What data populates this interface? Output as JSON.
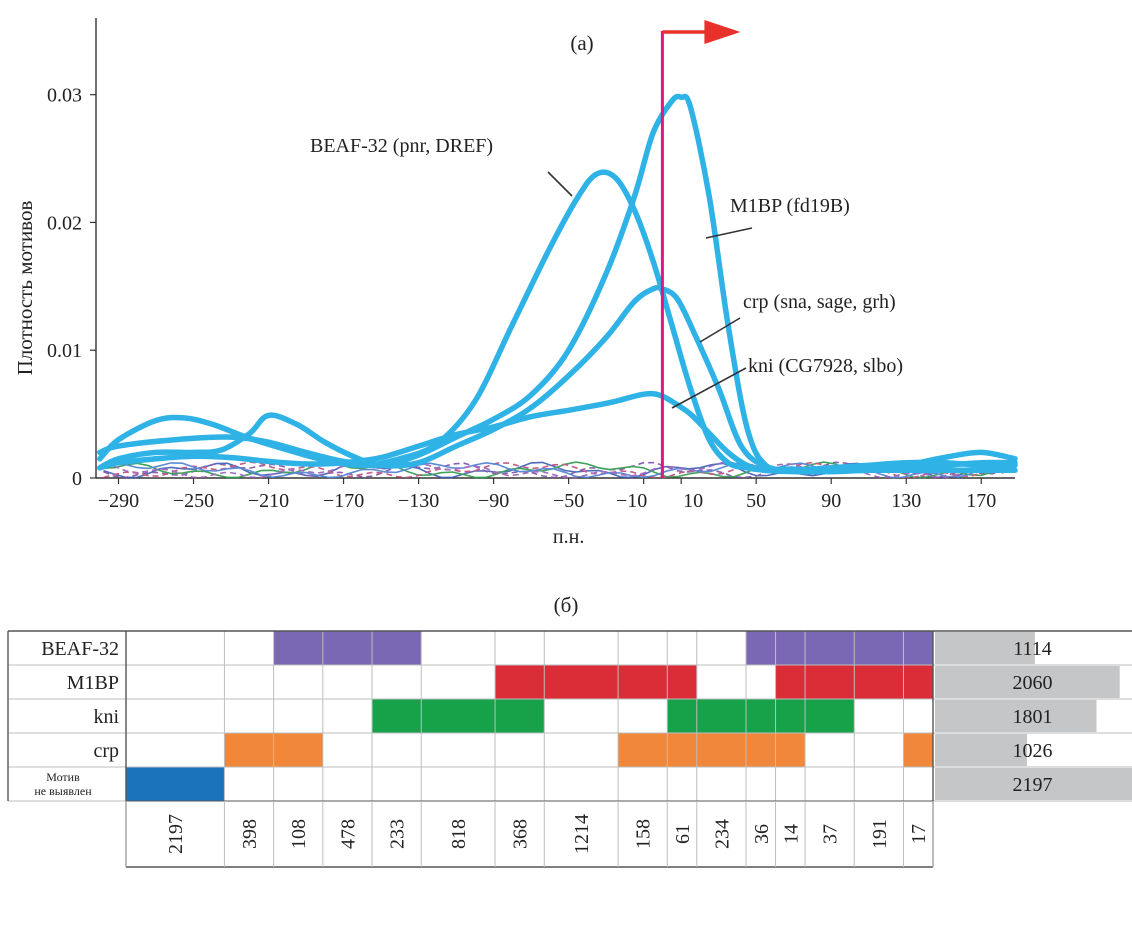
{
  "chart_data": [
    {
      "type": "line",
      "panel_label": "(a)",
      "xlabel": "п.н.",
      "ylabel": "Плотность мотивов",
      "xlim": [
        -302,
        188
      ],
      "ylim": [
        0,
        0.036
      ],
      "x_ticks": [
        -290,
        -250,
        -210,
        -170,
        -130,
        -90,
        -50,
        -10,
        10,
        50,
        90,
        130,
        170
      ],
      "x_tick_labels": [
        "−290",
        "−250",
        "−210",
        "−170",
        "−130",
        "−90",
        "−50",
        "−10",
        "10",
        "50",
        "90",
        "130",
        "170"
      ],
      "y_ticks": [
        0,
        0.01,
        0.02,
        0.03
      ],
      "y_tick_labels": [
        "0",
        "0.01",
        "0.02",
        "0.03"
      ],
      "tss_marker_x": 0,
      "series": [
        {
          "name": "BEAF-32 (pnr, DREF)",
          "color": "#2fb2e6",
          "x": [
            -300,
            -290,
            -270,
            -255,
            -240,
            -220,
            -200,
            -180,
            -160,
            -140,
            -120,
            -100,
            -80,
            -60,
            -45,
            -35,
            -25,
            -15,
            -5,
            5,
            15,
            25,
            35,
            45,
            55,
            70,
            90,
            110,
            130,
            150,
            170,
            188
          ],
          "y": [
            0.0015,
            0.003,
            0.0045,
            0.0047,
            0.0042,
            0.0031,
            0.0022,
            0.0014,
            0.001,
            0.0015,
            0.0027,
            0.006,
            0.012,
            0.018,
            0.022,
            0.0238,
            0.0235,
            0.021,
            0.017,
            0.012,
            0.007,
            0.003,
            0.0012,
            0.0008,
            0.0006,
            0.0005,
            0.0005,
            0.0006,
            0.0006,
            0.0006,
            0.0006,
            0.0006
          ]
        },
        {
          "name": "M1BP (fd19B)",
          "color": "#2fb2e6",
          "x": [
            -300,
            -290,
            -260,
            -230,
            -210,
            -190,
            -170,
            -150,
            -130,
            -110,
            -90,
            -70,
            -50,
            -30,
            -15,
            -5,
            5,
            10,
            15,
            25,
            35,
            45,
            55,
            70,
            90,
            110,
            130,
            150,
            170,
            188
          ],
          "y": [
            0.002,
            0.0025,
            0.003,
            0.0032,
            0.0028,
            0.002,
            0.0013,
            0.001,
            0.0018,
            0.0032,
            0.0046,
            0.0065,
            0.01,
            0.016,
            0.022,
            0.027,
            0.0295,
            0.0298,
            0.029,
            0.022,
            0.012,
            0.004,
            0.001,
            0.0007,
            0.0006,
            0.0007,
            0.001,
            0.0016,
            0.002,
            0.0015
          ]
        },
        {
          "name": "crp (sna, sage, grh)",
          "color": "#2fb2e6",
          "x": [
            -300,
            -290,
            -270,
            -250,
            -235,
            -220,
            -210,
            -195,
            -180,
            -165,
            -150,
            -130,
            -110,
            -90,
            -70,
            -50,
            -30,
            -15,
            -5,
            0,
            8,
            18,
            30,
            42,
            55,
            70,
            90,
            110,
            130,
            150,
            170,
            188
          ],
          "y": [
            0.0008,
            0.0015,
            0.002,
            0.002,
            0.0022,
            0.0035,
            0.0049,
            0.0042,
            0.0028,
            0.0017,
            0.001,
            0.0012,
            0.0025,
            0.0038,
            0.0055,
            0.008,
            0.011,
            0.0138,
            0.0148,
            0.0148,
            0.014,
            0.011,
            0.007,
            0.0025,
            0.0009,
            0.0006,
            0.0006,
            0.0006,
            0.0008,
            0.001,
            0.0012,
            0.0012
          ]
        },
        {
          "name": "kni (CG7928, slbo)",
          "color": "#2fb2e6",
          "x": [
            -300,
            -290,
            -270,
            -250,
            -230,
            -210,
            -190,
            -170,
            -150,
            -130,
            -110,
            -90,
            -70,
            -50,
            -35,
            -25,
            -12,
            -5,
            0,
            5,
            15,
            25,
            35,
            45,
            55,
            70,
            90,
            110,
            130,
            150,
            170,
            188
          ],
          "y": [
            0.0008,
            0.0012,
            0.0015,
            0.0017,
            0.0016,
            0.0013,
            0.0011,
            0.0012,
            0.0016,
            0.0025,
            0.0034,
            0.004,
            0.0048,
            0.0053,
            0.0057,
            0.006,
            0.0065,
            0.0066,
            0.0064,
            0.006,
            0.005,
            0.0035,
            0.002,
            0.001,
            0.0006,
            0.0006,
            0.0008,
            0.001,
            0.0012,
            0.0012,
            0.001,
            0.001
          ]
        }
      ],
      "background_series_colors": [
        "#3b5bb5",
        "#7d4fa8",
        "#2c9a4a",
        "#c04a7a",
        "#4a7fcf",
        "#9a5dbb"
      ],
      "annotations": [
        {
          "text": "BEAF-32 (pnr, DREF)",
          "target": "BEAF-32 (pnr, DREF)"
        },
        {
          "text": "M1BP (fd19B)",
          "target": "M1BP (fd19B)"
        },
        {
          "text": "crp (sna, sage, grh)",
          "target": "crp (sna, sage, grh)"
        },
        {
          "text": "kni (CG7928, slbo)",
          "target": "kni (CG7928, slbo)"
        }
      ],
      "colors": {
        "curve": "#2fb2e6",
        "tss_line": "#e0177f",
        "arrow": "#e8312a"
      }
    },
    {
      "type": "table",
      "panel_label": "(б)",
      "rows": [
        "BEAF-32",
        "M1BP",
        "kni",
        "crp",
        "Мотив\nне выявлен"
      ],
      "column_counts": [
        "2197",
        "398",
        "108",
        "478",
        "233",
        "818",
        "368",
        "1214",
        "158",
        "61",
        "234",
        "36",
        "14",
        "37",
        "191",
        "17"
      ],
      "column_weights": [
        2,
        1,
        1,
        1,
        1,
        1.5,
        1,
        1.5,
        1,
        0.6,
        1,
        0.6,
        0.6,
        1,
        1,
        0.6
      ],
      "row_totals": [
        "1114",
        "2060",
        "1801",
        "1026",
        "2197"
      ],
      "row_total_values": [
        1114,
        2060,
        1801,
        1026,
        2197
      ],
      "row_colors": [
        "#7b68b4",
        "#da2d38",
        "#17a24a",
        "#f0873a",
        "#1a73bb"
      ],
      "membership": [
        [
          0,
          0,
          1,
          1,
          1,
          0,
          0,
          0,
          0,
          0,
          0,
          1,
          1,
          1,
          1,
          1
        ],
        [
          0,
          0,
          0,
          0,
          0,
          0,
          1,
          1,
          1,
          1,
          0,
          0,
          1,
          1,
          1,
          1
        ],
        [
          0,
          0,
          0,
          0,
          1,
          1,
          1,
          0,
          0,
          1,
          1,
          1,
          1,
          1,
          0,
          0
        ],
        [
          0,
          1,
          1,
          0,
          0,
          0,
          0,
          0,
          1,
          1,
          1,
          1,
          1,
          0,
          0,
          1
        ],
        [
          1,
          0,
          0,
          0,
          0,
          0,
          0,
          0,
          0,
          0,
          0,
          0,
          0,
          0,
          0,
          0
        ]
      ],
      "bar_color": "#c5c6c8"
    }
  ]
}
